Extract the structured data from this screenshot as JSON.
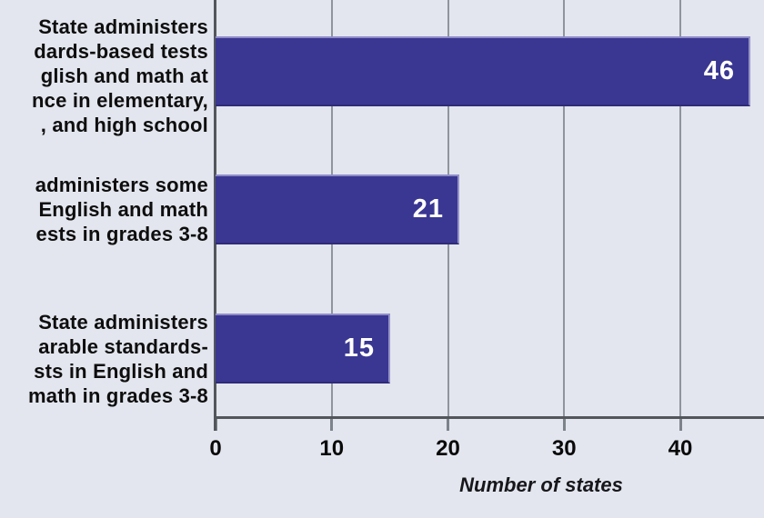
{
  "chart_data": {
    "type": "bar",
    "orientation": "horizontal",
    "title": "",
    "xlabel": "Number of states",
    "ylabel": "",
    "categories": [
      "State administers\ndards-based tests\nglish and math at\nnce in elementary,\n, and high school",
      "administers some\nEnglish and math\nests in grades 3-8",
      "State administers\narable standards-\nsts in English and\nmath in grades 3-8"
    ],
    "values": [
      46,
      21,
      15
    ],
    "value_labels": [
      "46",
      "21",
      "15"
    ],
    "xlim": [
      0,
      47.2
    ],
    "xticks": [
      0,
      10,
      20,
      30,
      40
    ],
    "xtick_labels": [
      "0",
      "10",
      "20",
      "30",
      "40"
    ],
    "grid": "vertical",
    "legend": "none",
    "colors": {
      "background": "#e3e6ee",
      "bar_fill": "#3a3792",
      "bar_edge_light": "#8f8cc8",
      "bar_edge_dark": "#2f2b78",
      "value_text": "#ffffff",
      "label_text": "#0e0e0e",
      "gridline": "#8f959c",
      "axis": "#53575c"
    }
  }
}
